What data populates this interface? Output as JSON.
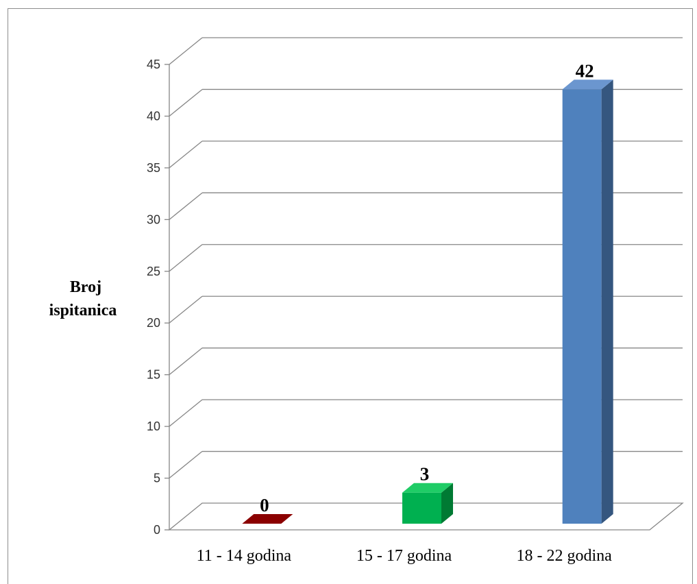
{
  "chart_data": {
    "type": "bar",
    "style": "3d-clustered-column",
    "categories": [
      "11 - 14 godina",
      "15 - 17 godina",
      "18 - 22 godina"
    ],
    "values": [
      0,
      3,
      42
    ],
    "data_labels": [
      "0",
      "3",
      "42"
    ],
    "colors": [
      "#8b0000",
      "#00b050",
      "#4f81bd"
    ],
    "side_colors": [
      "#5a0000",
      "#007a33",
      "#35567f"
    ],
    "top_colors": [
      "#a11f1f",
      "#1fcc66",
      "#6b96cf"
    ],
    "ylabel": [
      "Broj",
      "ispitanica"
    ],
    "ylim": [
      0,
      45
    ],
    "yticks": [
      "0",
      "5",
      "10",
      "15",
      "20",
      "25",
      "30",
      "35",
      "40",
      "45"
    ],
    "grid": true,
    "legend": "none"
  }
}
